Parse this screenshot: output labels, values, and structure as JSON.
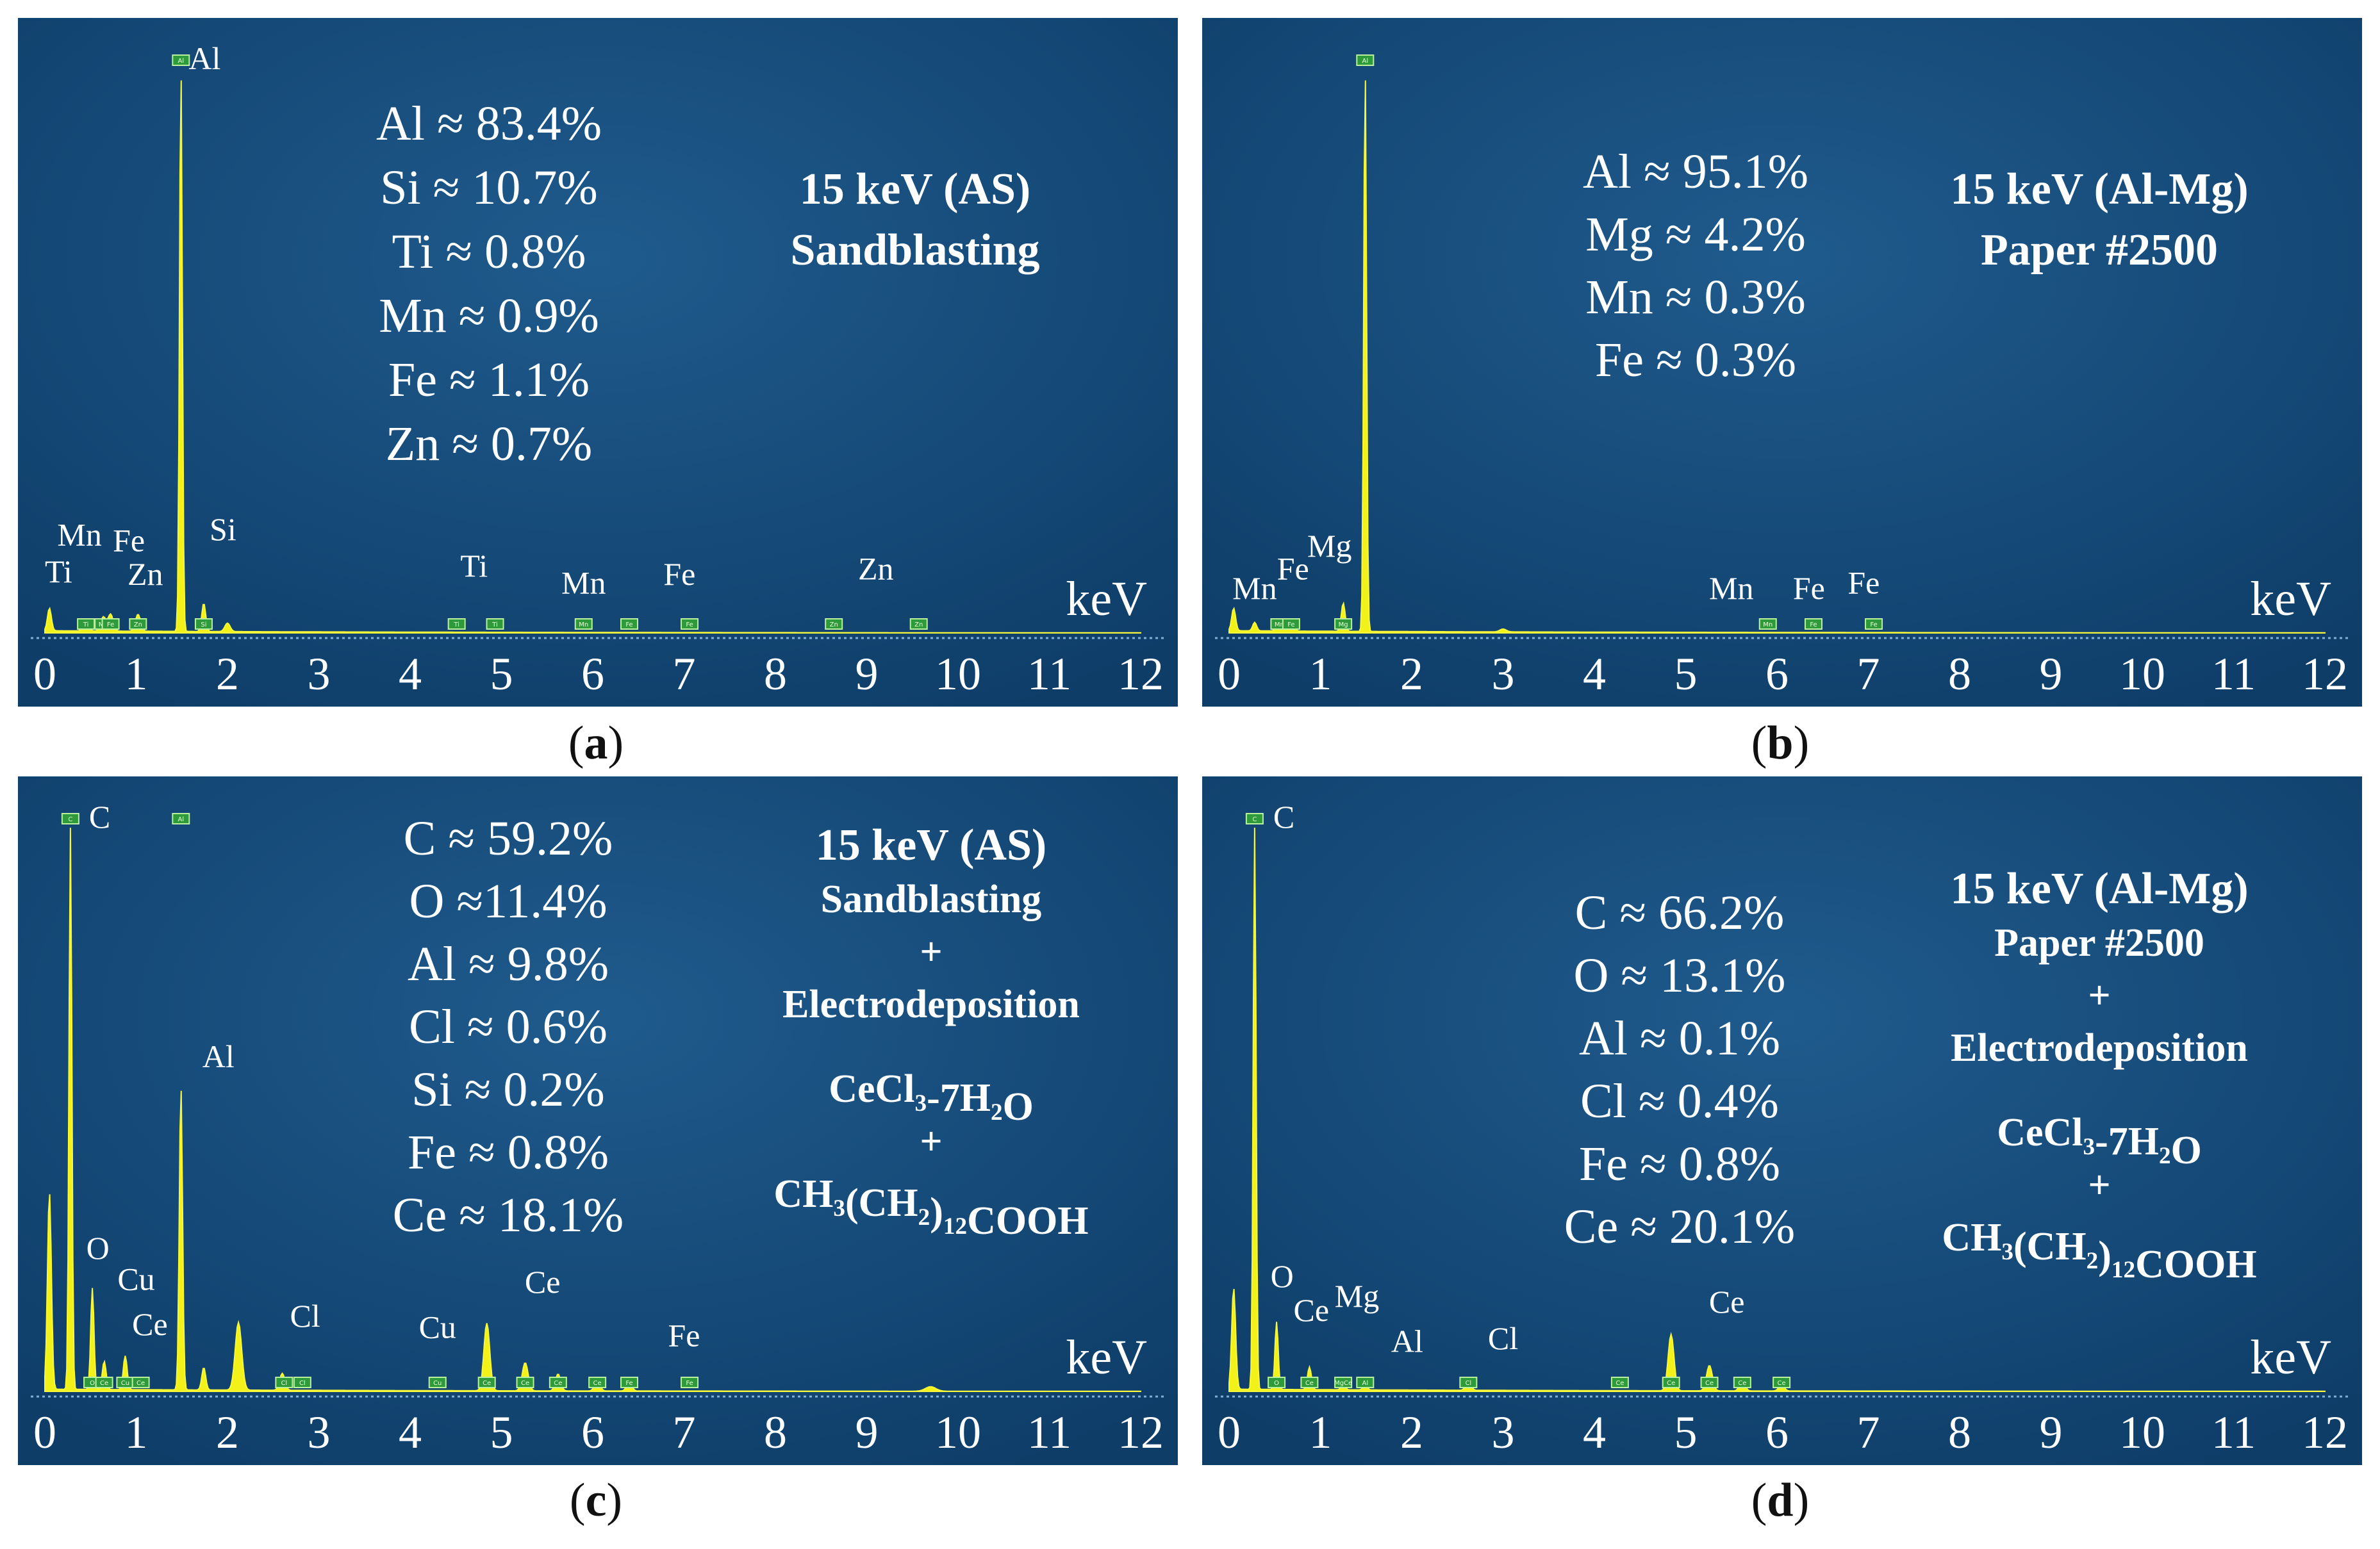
{
  "chart_data": [
    {
      "type": "area",
      "id": "a",
      "caption": "a",
      "xlabel": "keV",
      "xlim": [
        0,
        12
      ],
      "x_ticks": [
        "0",
        "1",
        "2",
        "3",
        "4",
        "5",
        "6",
        "7",
        "8",
        "9",
        "10",
        "11",
        "12"
      ],
      "condition": [
        "15 keV (AS)",
        "Sandblasting"
      ],
      "composition": [
        "Al ≈ 83.4%",
        "Si ≈ 10.7%",
        "Ti ≈ 0.8%",
        "Mn ≈ 0.9%",
        "Fe ≈ 1.1%",
        "Zn ≈ 0.7%"
      ],
      "peaks": [
        {
          "x": 0.05,
          "h": 0.04,
          "w": 0.03
        },
        {
          "x": 0.45,
          "h": 0.02,
          "w": 0.04
        },
        {
          "x": 0.64,
          "h": 0.025,
          "w": 0.04
        },
        {
          "x": 0.72,
          "h": 0.03,
          "w": 0.04
        },
        {
          "x": 1.02,
          "h": 0.03,
          "w": 0.04
        },
        {
          "x": 1.49,
          "h": 1.0,
          "w": 0.022
        },
        {
          "x": 1.74,
          "h": 0.05,
          "w": 0.03
        },
        {
          "x": 2.0,
          "h": 0.015,
          "w": 0.04
        }
      ],
      "labels": [
        {
          "t": "Al",
          "x": 1.75,
          "y": 1.0
        },
        {
          "t": "Si",
          "x": 1.95,
          "y": 0.165
        },
        {
          "t": "Mn",
          "x": 0.38,
          "y": 0.155
        },
        {
          "t": "Fe",
          "x": 0.92,
          "y": 0.145
        },
        {
          "t": "Ti",
          "x": 0.15,
          "y": 0.09
        },
        {
          "t": "Zn",
          "x": 1.1,
          "y": 0.085
        },
        {
          "t": "Ti",
          "x": 4.7,
          "y": 0.1
        },
        {
          "t": "Mn",
          "x": 5.9,
          "y": 0.07
        },
        {
          "t": "Fe",
          "x": 6.95,
          "y": 0.085
        },
        {
          "t": "Zn",
          "x": 9.1,
          "y": 0.095
        }
      ],
      "tags": [
        {
          "t": "Ti",
          "x": 0.45
        },
        {
          "t": "Mn",
          "x": 0.64
        },
        {
          "t": "Fe",
          "x": 0.72
        },
        {
          "t": "Zn",
          "x": 1.02
        },
        {
          "t": "Al",
          "x": 1.49,
          "top": true
        },
        {
          "t": "Si",
          "x": 1.74
        },
        {
          "t": "Ti",
          "x": 4.51
        },
        {
          "t": "Ti",
          "x": 4.93
        },
        {
          "t": "Mn",
          "x": 5.9
        },
        {
          "t": "Fe",
          "x": 6.4
        },
        {
          "t": "Fe",
          "x": 7.06
        },
        {
          "t": "Zn",
          "x": 8.64
        },
        {
          "t": "Zn",
          "x": 9.57
        }
      ]
    },
    {
      "type": "area",
      "id": "b",
      "caption": "b",
      "xlabel": "keV",
      "xlim": [
        0,
        12
      ],
      "x_ticks": [
        "0",
        "1",
        "2",
        "3",
        "4",
        "5",
        "6",
        "7",
        "8",
        "9",
        "10",
        "11",
        "12"
      ],
      "condition": [
        "15 keV (Al-Mg)",
        "Paper #2500"
      ],
      "composition": [
        "Al ≈ 95.1%",
        "Mg ≈ 4.2%",
        "Mn ≈ 0.3%",
        "Fe ≈ 0.3%"
      ],
      "peaks": [
        {
          "x": 0.05,
          "h": 0.04,
          "w": 0.03
        },
        {
          "x": 0.28,
          "h": 0.015,
          "w": 0.03
        },
        {
          "x": 0.55,
          "h": 0.02,
          "w": 0.04
        },
        {
          "x": 0.68,
          "h": 0.02,
          "w": 0.04
        },
        {
          "x": 1.25,
          "h": 0.05,
          "w": 0.03
        },
        {
          "x": 1.49,
          "h": 1.0,
          "w": 0.022
        },
        {
          "x": 3.0,
          "h": 0.005,
          "w": 0.05
        }
      ],
      "labels": [
        {
          "t": "Mg",
          "x": 1.1,
          "y": 0.135
        },
        {
          "t": "Fe",
          "x": 0.7,
          "y": 0.095
        },
        {
          "t": "Mn",
          "x": 0.28,
          "y": 0.06
        },
        {
          "t": "Mn",
          "x": 5.5,
          "y": 0.06
        },
        {
          "t": "Fe",
          "x": 6.35,
          "y": 0.06
        },
        {
          "t": "Fe",
          "x": 6.95,
          "y": 0.07
        }
      ],
      "tags": [
        {
          "t": "Mn",
          "x": 0.55
        },
        {
          "t": "Fe",
          "x": 0.68
        },
        {
          "t": "Mg",
          "x": 1.25
        },
        {
          "t": "Al",
          "x": 1.49,
          "top": true
        },
        {
          "t": "Mn",
          "x": 5.9
        },
        {
          "t": "Fe",
          "x": 6.4
        },
        {
          "t": "Fe",
          "x": 7.06
        }
      ]
    },
    {
      "type": "area",
      "id": "c",
      "caption": "c",
      "xlabel": "keV",
      "xlim": [
        0,
        12
      ],
      "x_ticks": [
        "0",
        "1",
        "2",
        "3",
        "4",
        "5",
        "6",
        "7",
        "8",
        "9",
        "10",
        "11",
        "12"
      ],
      "condition": [
        "15 keV (AS)",
        "Sandblasting",
        "+",
        "Electrodeposition",
        "CeCl₃-7H₂O",
        "+",
        "CH₃(CH₂)₁₂COOH"
      ],
      "composition": [
        "C ≈ 59.2%",
        "O ≈11.4%",
        "Al ≈ 9.8%",
        "Cl ≈ 0.6%",
        "Si ≈ 0.2%",
        "Fe ≈ 0.8%",
        "Ce ≈ 18.1%"
      ],
      "peaks": [
        {
          "x": 0.05,
          "h": 0.35,
          "w": 0.03
        },
        {
          "x": 0.28,
          "h": 1.0,
          "w": 0.022
        },
        {
          "x": 0.52,
          "h": 0.18,
          "w": 0.025
        },
        {
          "x": 0.65,
          "h": 0.05,
          "w": 0.03
        },
        {
          "x": 0.88,
          "h": 0.06,
          "w": 0.03
        },
        {
          "x": 1.49,
          "h": 0.54,
          "w": 0.025
        },
        {
          "x": 1.74,
          "h": 0.04,
          "w": 0.03
        },
        {
          "x": 2.12,
          "h": 0.12,
          "w": 0.05
        },
        {
          "x": 2.6,
          "h": 0.03,
          "w": 0.04
        },
        {
          "x": 4.84,
          "h": 0.12,
          "w": 0.045
        },
        {
          "x": 5.26,
          "h": 0.05,
          "w": 0.045
        },
        {
          "x": 5.62,
          "h": 0.03,
          "w": 0.04
        },
        {
          "x": 6.05,
          "h": 0.02,
          "w": 0.04
        },
        {
          "x": 6.4,
          "h": 0.015,
          "w": 0.04
        },
        {
          "x": 9.7,
          "h": 0.008,
          "w": 0.08
        }
      ],
      "labels": [
        {
          "t": "C",
          "x": 0.6,
          "y": 1.0
        },
        {
          "t": "Al",
          "x": 1.9,
          "y": 0.575
        },
        {
          "t": "O",
          "x": 0.58,
          "y": 0.235
        },
        {
          "t": "Cu",
          "x": 1.0,
          "y": 0.18
        },
        {
          "t": "Ce",
          "x": 1.15,
          "y": 0.1
        },
        {
          "t": "Cl",
          "x": 2.85,
          "y": 0.115
        },
        {
          "t": "Cu",
          "x": 4.3,
          "y": 0.095
        },
        {
          "t": "Ce",
          "x": 5.45,
          "y": 0.175
        },
        {
          "t": "Fe",
          "x": 7.0,
          "y": 0.08
        }
      ],
      "tags": [
        {
          "t": "C",
          "x": 0.28,
          "top": true
        },
        {
          "t": "O",
          "x": 0.52
        },
        {
          "t": "Ce",
          "x": 0.65
        },
        {
          "t": "Cu",
          "x": 0.88
        },
        {
          "t": "Ce",
          "x": 1.05
        },
        {
          "t": "Al",
          "x": 1.49,
          "top": true
        },
        {
          "t": "Cl",
          "x": 2.62
        },
        {
          "t": "Cl",
          "x": 2.82
        },
        {
          "t": "Cu",
          "x": 4.3
        },
        {
          "t": "Ce",
          "x": 4.84
        },
        {
          "t": "Ce",
          "x": 5.26
        },
        {
          "t": "Ce",
          "x": 5.62
        },
        {
          "t": "Ce",
          "x": 6.05
        },
        {
          "t": "Fe",
          "x": 6.4
        },
        {
          "t": "Fe",
          "x": 7.06
        }
      ]
    },
    {
      "type": "area",
      "id": "d",
      "caption": "d",
      "xlabel": "keV",
      "xlim": [
        0,
        12
      ],
      "x_ticks": [
        "0",
        "1",
        "2",
        "3",
        "4",
        "5",
        "6",
        "7",
        "8",
        "9",
        "10",
        "11",
        "12"
      ],
      "condition": [
        "15 keV (Al-Mg)",
        "Paper #2500",
        "+",
        "Electrodeposition",
        "CeCl₃-7H₂O",
        "+",
        "CH₃(CH₂)₁₂COOH"
      ],
      "composition": [
        "C ≈ 66.2%",
        "O ≈ 13.1%",
        "Al ≈ 0.1%",
        "Cl ≈ 0.4%",
        "Fe ≈ 0.8%",
        "Ce ≈ 20.1%"
      ],
      "peaks": [
        {
          "x": 0.05,
          "h": 0.18,
          "w": 0.03
        },
        {
          "x": 0.28,
          "h": 1.0,
          "w": 0.022
        },
        {
          "x": 0.52,
          "h": 0.12,
          "w": 0.025
        },
        {
          "x": 0.88,
          "h": 0.04,
          "w": 0.03
        },
        {
          "x": 1.25,
          "h": 0.01,
          "w": 0.03
        },
        {
          "x": 1.49,
          "h": 0.01,
          "w": 0.03
        },
        {
          "x": 2.62,
          "h": 0.015,
          "w": 0.04
        },
        {
          "x": 4.84,
          "h": 0.1,
          "w": 0.045
        },
        {
          "x": 5.26,
          "h": 0.045,
          "w": 0.045
        },
        {
          "x": 5.62,
          "h": 0.02,
          "w": 0.04
        },
        {
          "x": 6.05,
          "h": 0.012,
          "w": 0.04
        }
      ],
      "labels": [
        {
          "t": "C",
          "x": 0.6,
          "y": 1.0
        },
        {
          "t": "O",
          "x": 0.58,
          "y": 0.185
        },
        {
          "t": "Ce",
          "x": 0.9,
          "y": 0.125
        },
        {
          "t": "Mg",
          "x": 1.4,
          "y": 0.15
        },
        {
          "t": "Al",
          "x": 1.95,
          "y": 0.07
        },
        {
          "t": "Cl",
          "x": 3.0,
          "y": 0.075
        },
        {
          "t": "Ce",
          "x": 5.45,
          "y": 0.14
        }
      ],
      "tags": [
        {
          "t": "C",
          "x": 0.28,
          "top": true
        },
        {
          "t": "O",
          "x": 0.52
        },
        {
          "t": "Ce",
          "x": 0.88
        },
        {
          "t": "MgCe",
          "x": 1.25
        },
        {
          "t": "Al",
          "x": 1.49
        },
        {
          "t": "Cl",
          "x": 2.62
        },
        {
          "t": "Ce",
          "x": 4.28
        },
        {
          "t": "Ce",
          "x": 4.84
        },
        {
          "t": "Ce",
          "x": 5.26
        },
        {
          "t": "Ce",
          "x": 5.62
        },
        {
          "t": "Ce",
          "x": 6.05
        }
      ]
    }
  ]
}
